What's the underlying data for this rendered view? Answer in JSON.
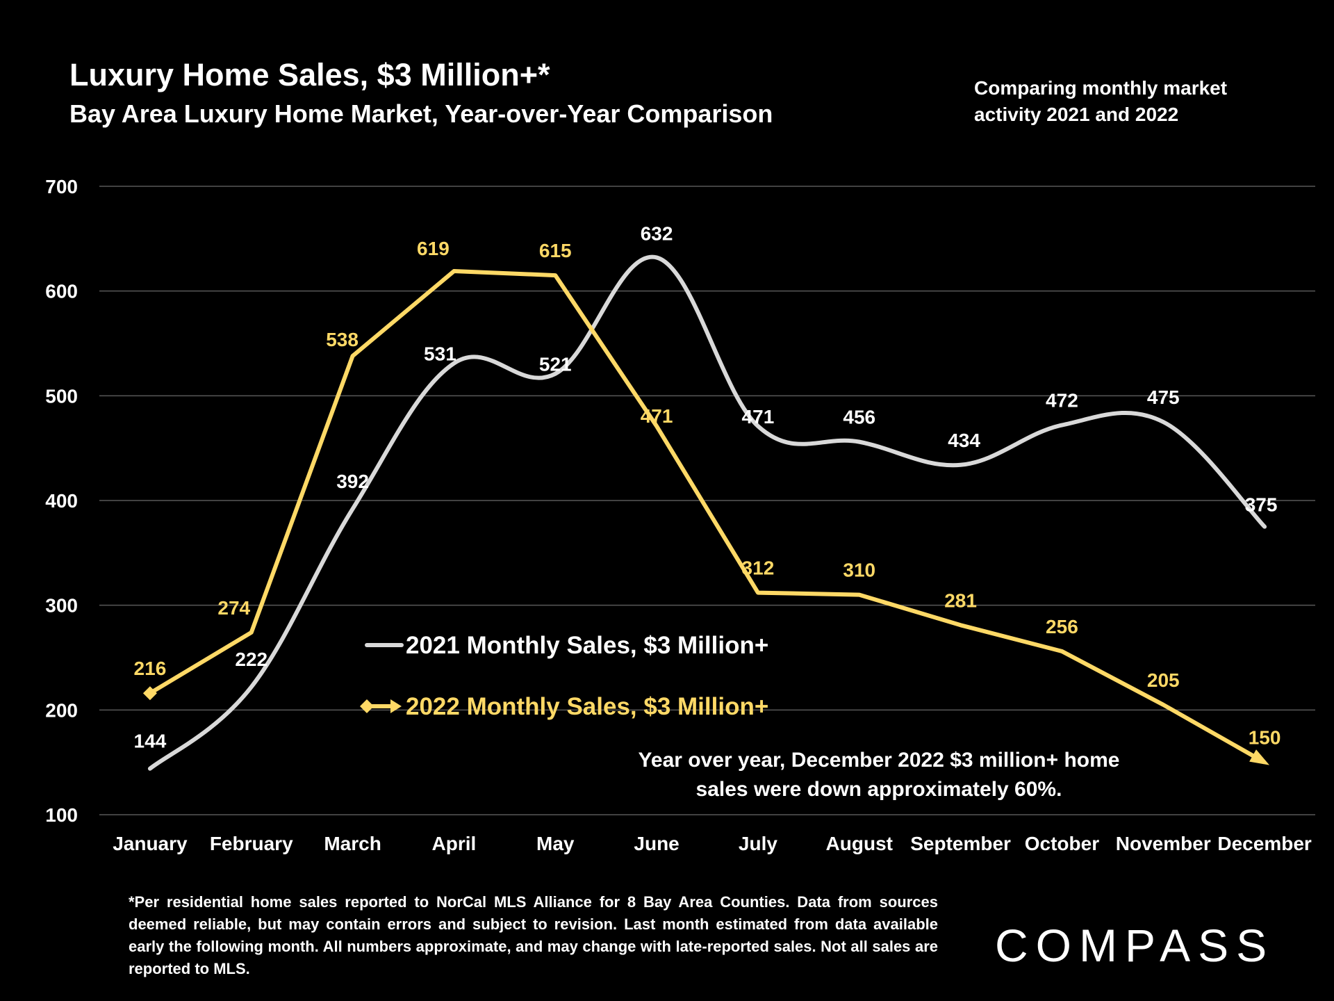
{
  "header": {
    "title": "Luxury Home Sales, $3 Million+*",
    "subtitle": "Bay Area Luxury Home Market, Year-over-Year Comparison",
    "note": "Comparing monthly market activity 2021 and 2022"
  },
  "callout": "Year over year, December 2022 $3 million+ home sales were down approximately 60%.",
  "footnote": "*Per residential home sales reported to NorCal MLS Alliance for 8 Bay Area Counties. Data from sources deemed reliable, but may contain errors and subject to revision. Last month estimated from data available early the following month. All numbers approximate, and may change with late-reported sales. Not all sales are reported to MLS.",
  "logo": "COMPASS",
  "colors": {
    "background": "#000000",
    "series_2021": "#d9d9d9",
    "series_2022": "#ffd966",
    "grid": "#595959"
  },
  "chart_data": {
    "type": "line",
    "title": "Luxury Home Sales, $3 Million+*",
    "categories": [
      "January",
      "February",
      "March",
      "April",
      "May",
      "June",
      "July",
      "August",
      "September",
      "October",
      "November",
      "December"
    ],
    "yticks": [
      100,
      200,
      300,
      400,
      500,
      600,
      700
    ],
    "ylim": [
      100,
      700
    ],
    "grid": true,
    "legend_position": "center-left",
    "series": [
      {
        "name": "2021 Monthly Sales, $3 Million+",
        "color": "#d9d9d9",
        "smooth": true,
        "values": [
          144,
          222,
          392,
          531,
          521,
          632,
          471,
          456,
          434,
          472,
          475,
          375
        ]
      },
      {
        "name": "2022 Monthly Sales, $3 Million+",
        "color": "#ffd966",
        "smooth": false,
        "values": [
          216,
          274,
          538,
          619,
          615,
          471,
          312,
          310,
          281,
          256,
          205,
          150
        ]
      }
    ]
  }
}
